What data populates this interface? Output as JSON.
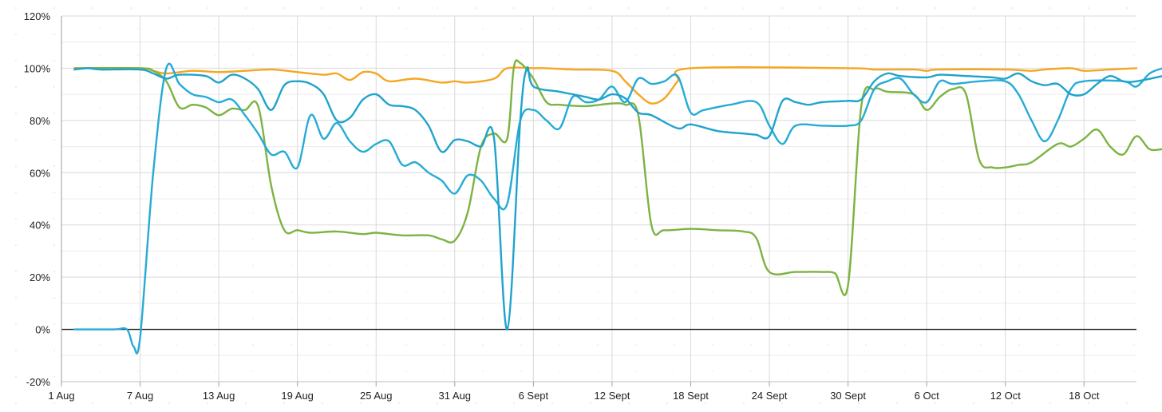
{
  "chart_data": {
    "type": "line",
    "title": "",
    "xlabel": "",
    "ylabel": "",
    "ylim": [
      -20,
      120
    ],
    "xlim": [
      "2023-08-01",
      "2023-10-22"
    ],
    "y_ticks": [
      -20,
      0,
      20,
      40,
      60,
      80,
      100,
      120
    ],
    "y_tick_labels": [
      "-20%",
      "0%",
      "20%",
      "40%",
      "60%",
      "80%",
      "100%",
      "120%"
    ],
    "x_ticks": [
      "2023-08-01",
      "2023-08-07",
      "2023-08-13",
      "2023-08-19",
      "2023-08-25",
      "2023-08-31",
      "2023-09-06",
      "2023-09-12",
      "2023-09-18",
      "2023-09-24",
      "2023-09-30",
      "2023-10-06",
      "2023-10-12",
      "2023-10-18"
    ],
    "x_tick_labels": [
      "1 Aug",
      "7 Aug",
      "13 Aug",
      "19 Aug",
      "25 Aug",
      "31 Aug",
      "6 Sept",
      "12 Sept",
      "18 Sept",
      "24 Sept",
      "30 Sept",
      "6 Oct",
      "12 Oct",
      "18 Oct"
    ],
    "grid": true,
    "series": [
      {
        "color": "#F5A623",
        "points": [
          [
            "2023-08-02",
            100
          ],
          [
            "2023-08-07",
            100
          ],
          [
            "2023-08-08",
            99
          ],
          [
            "2023-08-09",
            98
          ],
          [
            "2023-08-11",
            99
          ],
          [
            "2023-08-13",
            98.5
          ],
          [
            "2023-08-15",
            99
          ],
          [
            "2023-08-17",
            99.5
          ],
          [
            "2023-08-19",
            98.5
          ],
          [
            "2023-08-21",
            97.5
          ],
          [
            "2023-08-22",
            98
          ],
          [
            "2023-08-23",
            95.5
          ],
          [
            "2023-08-24",
            98.5
          ],
          [
            "2023-08-25",
            98
          ],
          [
            "2023-08-26",
            95
          ],
          [
            "2023-08-28",
            96
          ],
          [
            "2023-08-30",
            94.5
          ],
          [
            "2023-08-31",
            95
          ],
          [
            "2023-09-01",
            94.5
          ],
          [
            "2023-09-03",
            96
          ],
          [
            "2023-09-04",
            100
          ],
          [
            "2023-09-06",
            100
          ],
          [
            "2023-09-07",
            100
          ],
          [
            "2023-09-09",
            99.5
          ],
          [
            "2023-09-12",
            99
          ],
          [
            "2023-09-13",
            95
          ],
          [
            "2023-09-14",
            90
          ],
          [
            "2023-09-15",
            86.5
          ],
          [
            "2023-09-16",
            88.5
          ],
          [
            "2023-09-17",
            95
          ],
          [
            "2023-09-18",
            100
          ],
          [
            "2023-09-30",
            100
          ],
          [
            "2023-10-02",
            99.5
          ],
          [
            "2023-10-05",
            99.5
          ],
          [
            "2023-10-06",
            99
          ],
          [
            "2023-10-07",
            99.5
          ],
          [
            "2023-10-12",
            99.5
          ],
          [
            "2023-10-14",
            99
          ],
          [
            "2023-10-15",
            99.5
          ],
          [
            "2023-10-17",
            100
          ],
          [
            "2023-10-18",
            99
          ],
          [
            "2023-10-20",
            99.5
          ],
          [
            "2023-10-22",
            100
          ]
        ]
      },
      {
        "color": "#7CB342",
        "points": [
          [
            "2023-08-02",
            100
          ],
          [
            "2023-08-07",
            100
          ],
          [
            "2023-08-08",
            99
          ],
          [
            "2023-08-09",
            95
          ],
          [
            "2023-08-10",
            85
          ],
          [
            "2023-08-11",
            86
          ],
          [
            "2023-08-12",
            85
          ],
          [
            "2023-08-13",
            82
          ],
          [
            "2023-08-14",
            84.5
          ],
          [
            "2023-08-15",
            84
          ],
          [
            "2023-08-16",
            85.5
          ],
          [
            "2023-08-17",
            55
          ],
          [
            "2023-08-18",
            38
          ],
          [
            "2023-08-19",
            38
          ],
          [
            "2023-08-20",
            37
          ],
          [
            "2023-08-22",
            37.5
          ],
          [
            "2023-08-24",
            36.5
          ],
          [
            "2023-08-25",
            37
          ],
          [
            "2023-08-27",
            36
          ],
          [
            "2023-08-29",
            36
          ],
          [
            "2023-08-30",
            34.5
          ],
          [
            "2023-08-31",
            34
          ],
          [
            "2023-09-01",
            45
          ],
          [
            "2023-09-02",
            70
          ],
          [
            "2023-09-03",
            75
          ],
          [
            "2023-09-04",
            73
          ],
          [
            "2023-09-04T12:00",
            100
          ],
          [
            "2023-09-05",
            102
          ],
          [
            "2023-09-06",
            96
          ],
          [
            "2023-09-07",
            87
          ],
          [
            "2023-09-08",
            86
          ],
          [
            "2023-09-10",
            85.5
          ],
          [
            "2023-09-12",
            86.5
          ],
          [
            "2023-09-13",
            86
          ],
          [
            "2023-09-14",
            82
          ],
          [
            "2023-09-15",
            40
          ],
          [
            "2023-09-16",
            38
          ],
          [
            "2023-09-18",
            38.5
          ],
          [
            "2023-09-20",
            38
          ],
          [
            "2023-09-22",
            37.5
          ],
          [
            "2023-09-23",
            35
          ],
          [
            "2023-09-24",
            22
          ],
          [
            "2023-09-26",
            22
          ],
          [
            "2023-09-28",
            22
          ],
          [
            "2023-09-29",
            21.5
          ],
          [
            "2023-09-30",
            17
          ],
          [
            "2023-10-01",
            85
          ],
          [
            "2023-10-02",
            92
          ],
          [
            "2023-10-03",
            91
          ],
          [
            "2023-10-05",
            90
          ],
          [
            "2023-10-06",
            84
          ],
          [
            "2023-10-07",
            89
          ],
          [
            "2023-10-08",
            92
          ],
          [
            "2023-10-09",
            90
          ],
          [
            "2023-10-10",
            65
          ],
          [
            "2023-10-11",
            62
          ],
          [
            "2023-10-12",
            62
          ],
          [
            "2023-10-13",
            63
          ],
          [
            "2023-10-14",
            64
          ],
          [
            "2023-10-16",
            71
          ],
          [
            "2023-10-17",
            70
          ],
          [
            "2023-10-18",
            73
          ],
          [
            "2023-10-19",
            76.5
          ],
          [
            "2023-10-20",
            70
          ],
          [
            "2023-10-21",
            67
          ],
          [
            "2023-10-22",
            74
          ],
          [
            "2023-10-23",
            69
          ],
          [
            "2023-10-24",
            69
          ]
        ]
      },
      {
        "color": "#26ABD6",
        "points": [
          [
            "2023-08-02",
            0
          ],
          [
            "2023-08-05",
            0
          ],
          [
            "2023-08-06",
            0
          ],
          [
            "2023-08-06T12:00",
            -6.5
          ],
          [
            "2023-08-07",
            -3
          ],
          [
            "2023-08-08",
            60
          ],
          [
            "2023-08-09",
            100
          ],
          [
            "2023-08-10",
            94
          ],
          [
            "2023-08-11",
            90
          ],
          [
            "2023-08-12",
            89
          ],
          [
            "2023-08-13",
            87
          ],
          [
            "2023-08-14",
            88
          ],
          [
            "2023-08-15",
            82
          ],
          [
            "2023-08-16",
            75
          ],
          [
            "2023-08-17",
            67
          ],
          [
            "2023-08-18",
            68
          ],
          [
            "2023-08-19",
            62
          ],
          [
            "2023-08-20",
            82
          ],
          [
            "2023-08-21",
            73
          ],
          [
            "2023-08-22",
            79
          ],
          [
            "2023-08-23",
            72
          ],
          [
            "2023-08-24",
            68
          ],
          [
            "2023-08-25",
            71
          ],
          [
            "2023-08-26",
            72
          ],
          [
            "2023-08-27",
            63
          ],
          [
            "2023-08-28",
            64
          ],
          [
            "2023-08-29",
            60
          ],
          [
            "2023-08-30",
            57
          ],
          [
            "2023-08-31",
            52
          ],
          [
            "2023-09-01",
            59
          ],
          [
            "2023-09-02",
            57
          ],
          [
            "2023-09-03",
            50
          ],
          [
            "2023-09-04",
            48
          ],
          [
            "2023-09-05",
            80
          ],
          [
            "2023-09-06",
            84
          ],
          [
            "2023-09-07",
            80
          ],
          [
            "2023-09-08",
            77
          ],
          [
            "2023-09-09",
            89
          ],
          [
            "2023-09-10",
            87
          ],
          [
            "2023-09-11",
            88
          ],
          [
            "2023-09-12",
            93
          ],
          [
            "2023-09-13",
            87
          ],
          [
            "2023-09-14",
            96
          ],
          [
            "2023-09-15",
            94
          ],
          [
            "2023-09-16",
            95
          ],
          [
            "2023-09-17",
            97
          ],
          [
            "2023-09-18",
            83
          ],
          [
            "2023-09-19",
            84
          ],
          [
            "2023-09-21",
            86
          ],
          [
            "2023-09-23",
            87
          ],
          [
            "2023-09-24",
            78
          ],
          [
            "2023-09-25",
            71
          ],
          [
            "2023-09-26",
            78
          ],
          [
            "2023-09-28",
            78
          ],
          [
            "2023-09-30",
            78
          ],
          [
            "2023-10-01",
            80
          ],
          [
            "2023-10-02",
            92
          ],
          [
            "2023-10-03",
            95
          ],
          [
            "2023-10-04",
            96
          ],
          [
            "2023-10-05",
            90
          ],
          [
            "2023-10-06",
            87
          ],
          [
            "2023-10-07",
            95
          ],
          [
            "2023-10-08",
            94
          ],
          [
            "2023-10-10",
            95
          ],
          [
            "2023-10-12",
            95
          ],
          [
            "2023-10-13",
            90
          ],
          [
            "2023-10-14",
            80
          ],
          [
            "2023-10-15",
            72
          ],
          [
            "2023-10-16",
            80
          ],
          [
            "2023-10-17",
            92
          ],
          [
            "2023-10-18",
            95
          ],
          [
            "2023-10-21",
            95
          ],
          [
            "2023-10-22",
            93
          ],
          [
            "2023-10-23",
            98
          ],
          [
            "2023-10-24",
            100
          ]
        ]
      },
      {
        "color": "#1FA3CC",
        "points": [
          [
            "2023-08-02",
            99.5
          ],
          [
            "2023-08-03",
            100
          ],
          [
            "2023-08-04",
            99.5
          ],
          [
            "2023-08-07",
            99.5
          ],
          [
            "2023-08-08",
            98
          ],
          [
            "2023-08-09",
            96
          ],
          [
            "2023-08-10",
            97.5
          ],
          [
            "2023-08-12",
            97
          ],
          [
            "2023-08-13",
            94.5
          ],
          [
            "2023-08-14",
            97.5
          ],
          [
            "2023-08-15",
            96
          ],
          [
            "2023-08-16",
            92
          ],
          [
            "2023-08-17",
            84
          ],
          [
            "2023-08-18",
            93.5
          ],
          [
            "2023-08-19",
            95
          ],
          [
            "2023-08-20",
            94
          ],
          [
            "2023-08-21",
            90
          ],
          [
            "2023-08-22",
            80
          ],
          [
            "2023-08-23",
            81
          ],
          [
            "2023-08-24",
            88
          ],
          [
            "2023-08-25",
            90
          ],
          [
            "2023-08-26",
            86
          ],
          [
            "2023-08-27",
            85.5
          ],
          [
            "2023-08-28",
            84
          ],
          [
            "2023-08-29",
            78
          ],
          [
            "2023-08-30",
            68
          ],
          [
            "2023-08-31",
            72.5
          ],
          [
            "2023-09-01",
            72
          ],
          [
            "2023-09-02",
            70
          ],
          [
            "2023-09-03",
            73
          ],
          [
            "2023-09-04",
            0
          ],
          [
            "2023-09-05",
            80
          ],
          [
            "2023-09-05T12:00",
            100
          ],
          [
            "2023-09-06",
            93
          ],
          [
            "2023-09-08",
            91
          ],
          [
            "2023-09-09",
            90
          ],
          [
            "2023-09-10",
            89
          ],
          [
            "2023-09-11",
            88
          ],
          [
            "2023-09-12",
            90
          ],
          [
            "2023-09-13",
            88.5
          ],
          [
            "2023-09-14",
            83
          ],
          [
            "2023-09-15",
            82
          ],
          [
            "2023-09-17",
            77
          ],
          [
            "2023-09-18",
            78.5
          ],
          [
            "2023-09-20",
            76
          ],
          [
            "2023-09-22",
            75
          ],
          [
            "2023-09-23",
            74.5
          ],
          [
            "2023-09-24",
            74
          ],
          [
            "2023-09-25",
            87.5
          ],
          [
            "2023-09-26",
            87
          ],
          [
            "2023-09-27",
            86
          ],
          [
            "2023-09-28",
            87
          ],
          [
            "2023-09-30",
            87.5
          ],
          [
            "2023-10-01",
            88
          ],
          [
            "2023-10-02",
            95
          ],
          [
            "2023-10-03",
            98
          ],
          [
            "2023-10-04",
            97
          ],
          [
            "2023-10-06",
            96.5
          ],
          [
            "2023-10-07",
            97.5
          ],
          [
            "2023-10-09",
            97
          ],
          [
            "2023-10-11",
            96.5
          ],
          [
            "2023-10-12",
            96
          ],
          [
            "2023-10-13",
            98
          ],
          [
            "2023-10-14",
            95
          ],
          [
            "2023-10-15",
            93.5
          ],
          [
            "2023-10-16",
            94
          ],
          [
            "2023-10-17",
            90
          ],
          [
            "2023-10-18",
            90
          ],
          [
            "2023-10-19",
            94
          ],
          [
            "2023-10-20",
            97
          ],
          [
            "2023-10-21",
            95
          ],
          [
            "2023-10-22",
            95
          ],
          [
            "2023-10-24",
            97
          ]
        ]
      }
    ]
  }
}
